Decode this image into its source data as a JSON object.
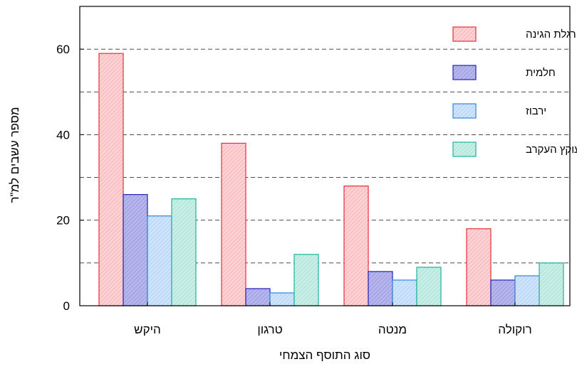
{
  "chart_data": {
    "type": "bar",
    "xlabel": "סוג התוסף הצמחי",
    "ylabel": "מספר עשבים למ\"ר",
    "categories": [
      "היקש",
      "טרגון",
      "מנטה",
      "רוקולה"
    ],
    "ylim": [
      0,
      70
    ],
    "yticks": [
      0,
      20,
      40,
      60
    ],
    "grid": {
      "horizontal_dashed": true,
      "values": [
        10,
        20,
        30,
        40,
        50,
        60
      ]
    },
    "legend_position": "top-right",
    "series": [
      {
        "name": "רגלת הגינה",
        "values": [
          59,
          38,
          28,
          18
        ],
        "fill": "#fcd2d4",
        "stroke": "#e8303a"
      },
      {
        "name": "חלמית",
        "values": [
          26,
          4,
          8,
          6
        ],
        "fill": "#b6b6ec",
        "stroke": "#2323b8"
      },
      {
        "name": "ירבוז",
        "values": [
          21,
          3,
          6,
          7
        ],
        "fill": "#cfe4fb",
        "stroke": "#2e86e0"
      },
      {
        "name": "עוקץ העקרב",
        "values": [
          25,
          12,
          9,
          10
        ],
        "fill": "#c8eee6",
        "stroke": "#1fb39a"
      }
    ]
  }
}
